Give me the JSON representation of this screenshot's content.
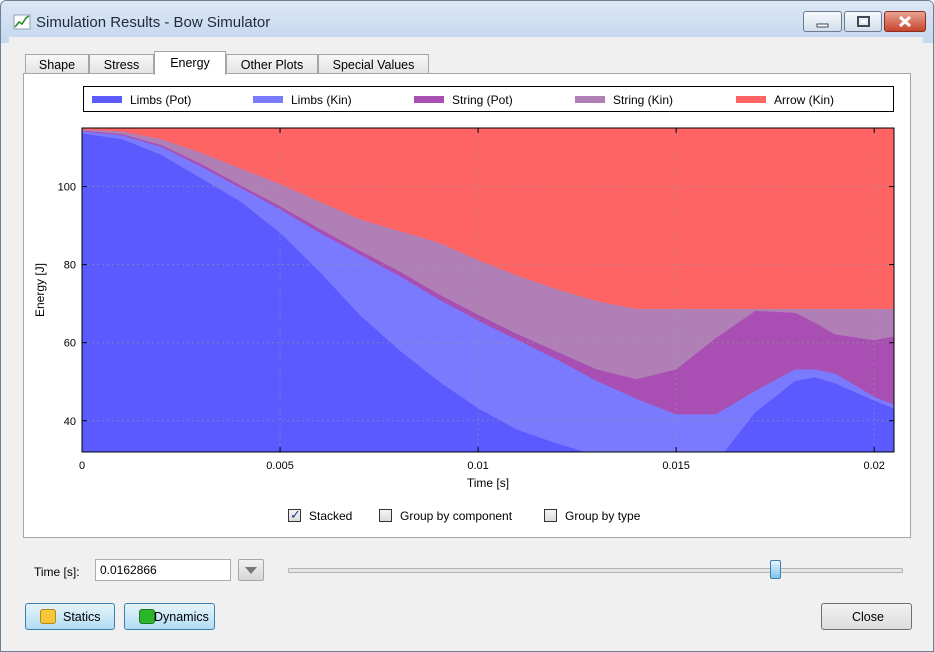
{
  "window": {
    "title": "Simulation Results - Bow Simulator",
    "icon": "chart-line-icon"
  },
  "tabs": [
    {
      "label": "Shape",
      "active": false
    },
    {
      "label": "Stress",
      "active": false
    },
    {
      "label": "Energy",
      "active": true
    },
    {
      "label": "Other Plots",
      "active": false
    },
    {
      "label": "Special Values",
      "active": false
    }
  ],
  "legend": [
    {
      "label": "Limbs (Pot)",
      "color": "#5a5aff"
    },
    {
      "label": "Limbs (Kin)",
      "color": "#7a7aff"
    },
    {
      "label": "String (Pot)",
      "color": "#a94fb4"
    },
    {
      "label": "String (Kin)",
      "color": "#b07fb6"
    },
    {
      "label": "Arrow (Kin)",
      "color": "#ff6464"
    }
  ],
  "chart_data": {
    "type": "area",
    "stacked": true,
    "xlabel": "Time [s]",
    "ylabel": "Energy [J]",
    "xlim": [
      0,
      0.0205
    ],
    "ylim": [
      32,
      115
    ],
    "x_ticks": [
      0,
      0.005,
      0.01,
      0.015,
      0.02
    ],
    "x_tick_labels": [
      "0",
      "0.005",
      "0.01",
      "0.015",
      "0.02"
    ],
    "y_ticks": [
      40,
      60,
      80,
      100
    ],
    "y_tick_labels": [
      "40",
      "60",
      "80",
      "100"
    ],
    "grid": true,
    "x": [
      0,
      0.001,
      0.002,
      0.003,
      0.004,
      0.005,
      0.006,
      0.007,
      0.008,
      0.009,
      0.01,
      0.011,
      0.012,
      0.013,
      0.014,
      0.015,
      0.016,
      0.017,
      0.018,
      0.0185,
      0.019,
      0.02,
      0.0205
    ],
    "stack_tops": [
      {
        "name": "Limbs (Pot)",
        "values": [
          113.5,
          112,
          108,
          102,
          96,
          88,
          78,
          67,
          58,
          50,
          43,
          37.5,
          34,
          31,
          29,
          26.5,
          29,
          42,
          50,
          51,
          49.5,
          45,
          43
        ]
      },
      {
        "name": "Limbs (Kin)",
        "values": [
          114,
          113,
          110,
          105,
          99.5,
          94,
          88,
          82.5,
          77,
          71,
          65.5,
          60.5,
          55.5,
          50,
          45.5,
          41.5,
          41.5,
          47.5,
          53,
          53,
          52,
          46,
          44
        ]
      },
      {
        "name": "String (Pot)",
        "values": [
          114.2,
          113.3,
          110.5,
          105.7,
          100.2,
          94.8,
          89,
          83.5,
          78.2,
          72.3,
          67,
          62,
          57.5,
          53,
          50.5,
          53,
          61,
          68,
          67.5,
          65,
          62,
          60.5,
          61.5
        ]
      },
      {
        "name": "String (Kin)",
        "values": [
          114.5,
          114,
          112,
          108.5,
          104.5,
          100.5,
          96,
          91.5,
          88.5,
          85.5,
          81,
          77,
          73.5,
          70.5,
          68.5,
          68.5,
          68.5,
          68.5,
          68.5,
          68.5,
          68.5,
          68.5,
          68.5
        ]
      },
      {
        "name": "Arrow (Kin)",
        "values": [
          115,
          115,
          115,
          115,
          115,
          115,
          115,
          115,
          115,
          115,
          115,
          115,
          115,
          115,
          115,
          115,
          115,
          115,
          115,
          115,
          115,
          115,
          115
        ]
      }
    ]
  },
  "options": [
    {
      "label": "Stacked",
      "checked": true
    },
    {
      "label": "Group by component",
      "checked": false
    },
    {
      "label": "Group by type",
      "checked": false
    }
  ],
  "time": {
    "label": "Time [s]:",
    "value": "0.0162866",
    "slider_fraction": 0.794
  },
  "buttons": {
    "statics": "Statics",
    "dynamics": "Dynamics",
    "close": "Close"
  },
  "colors": {
    "statics_icon": "#f6c63a",
    "dynamics_icon": "#2ab52a",
    "grid": "#999999"
  }
}
